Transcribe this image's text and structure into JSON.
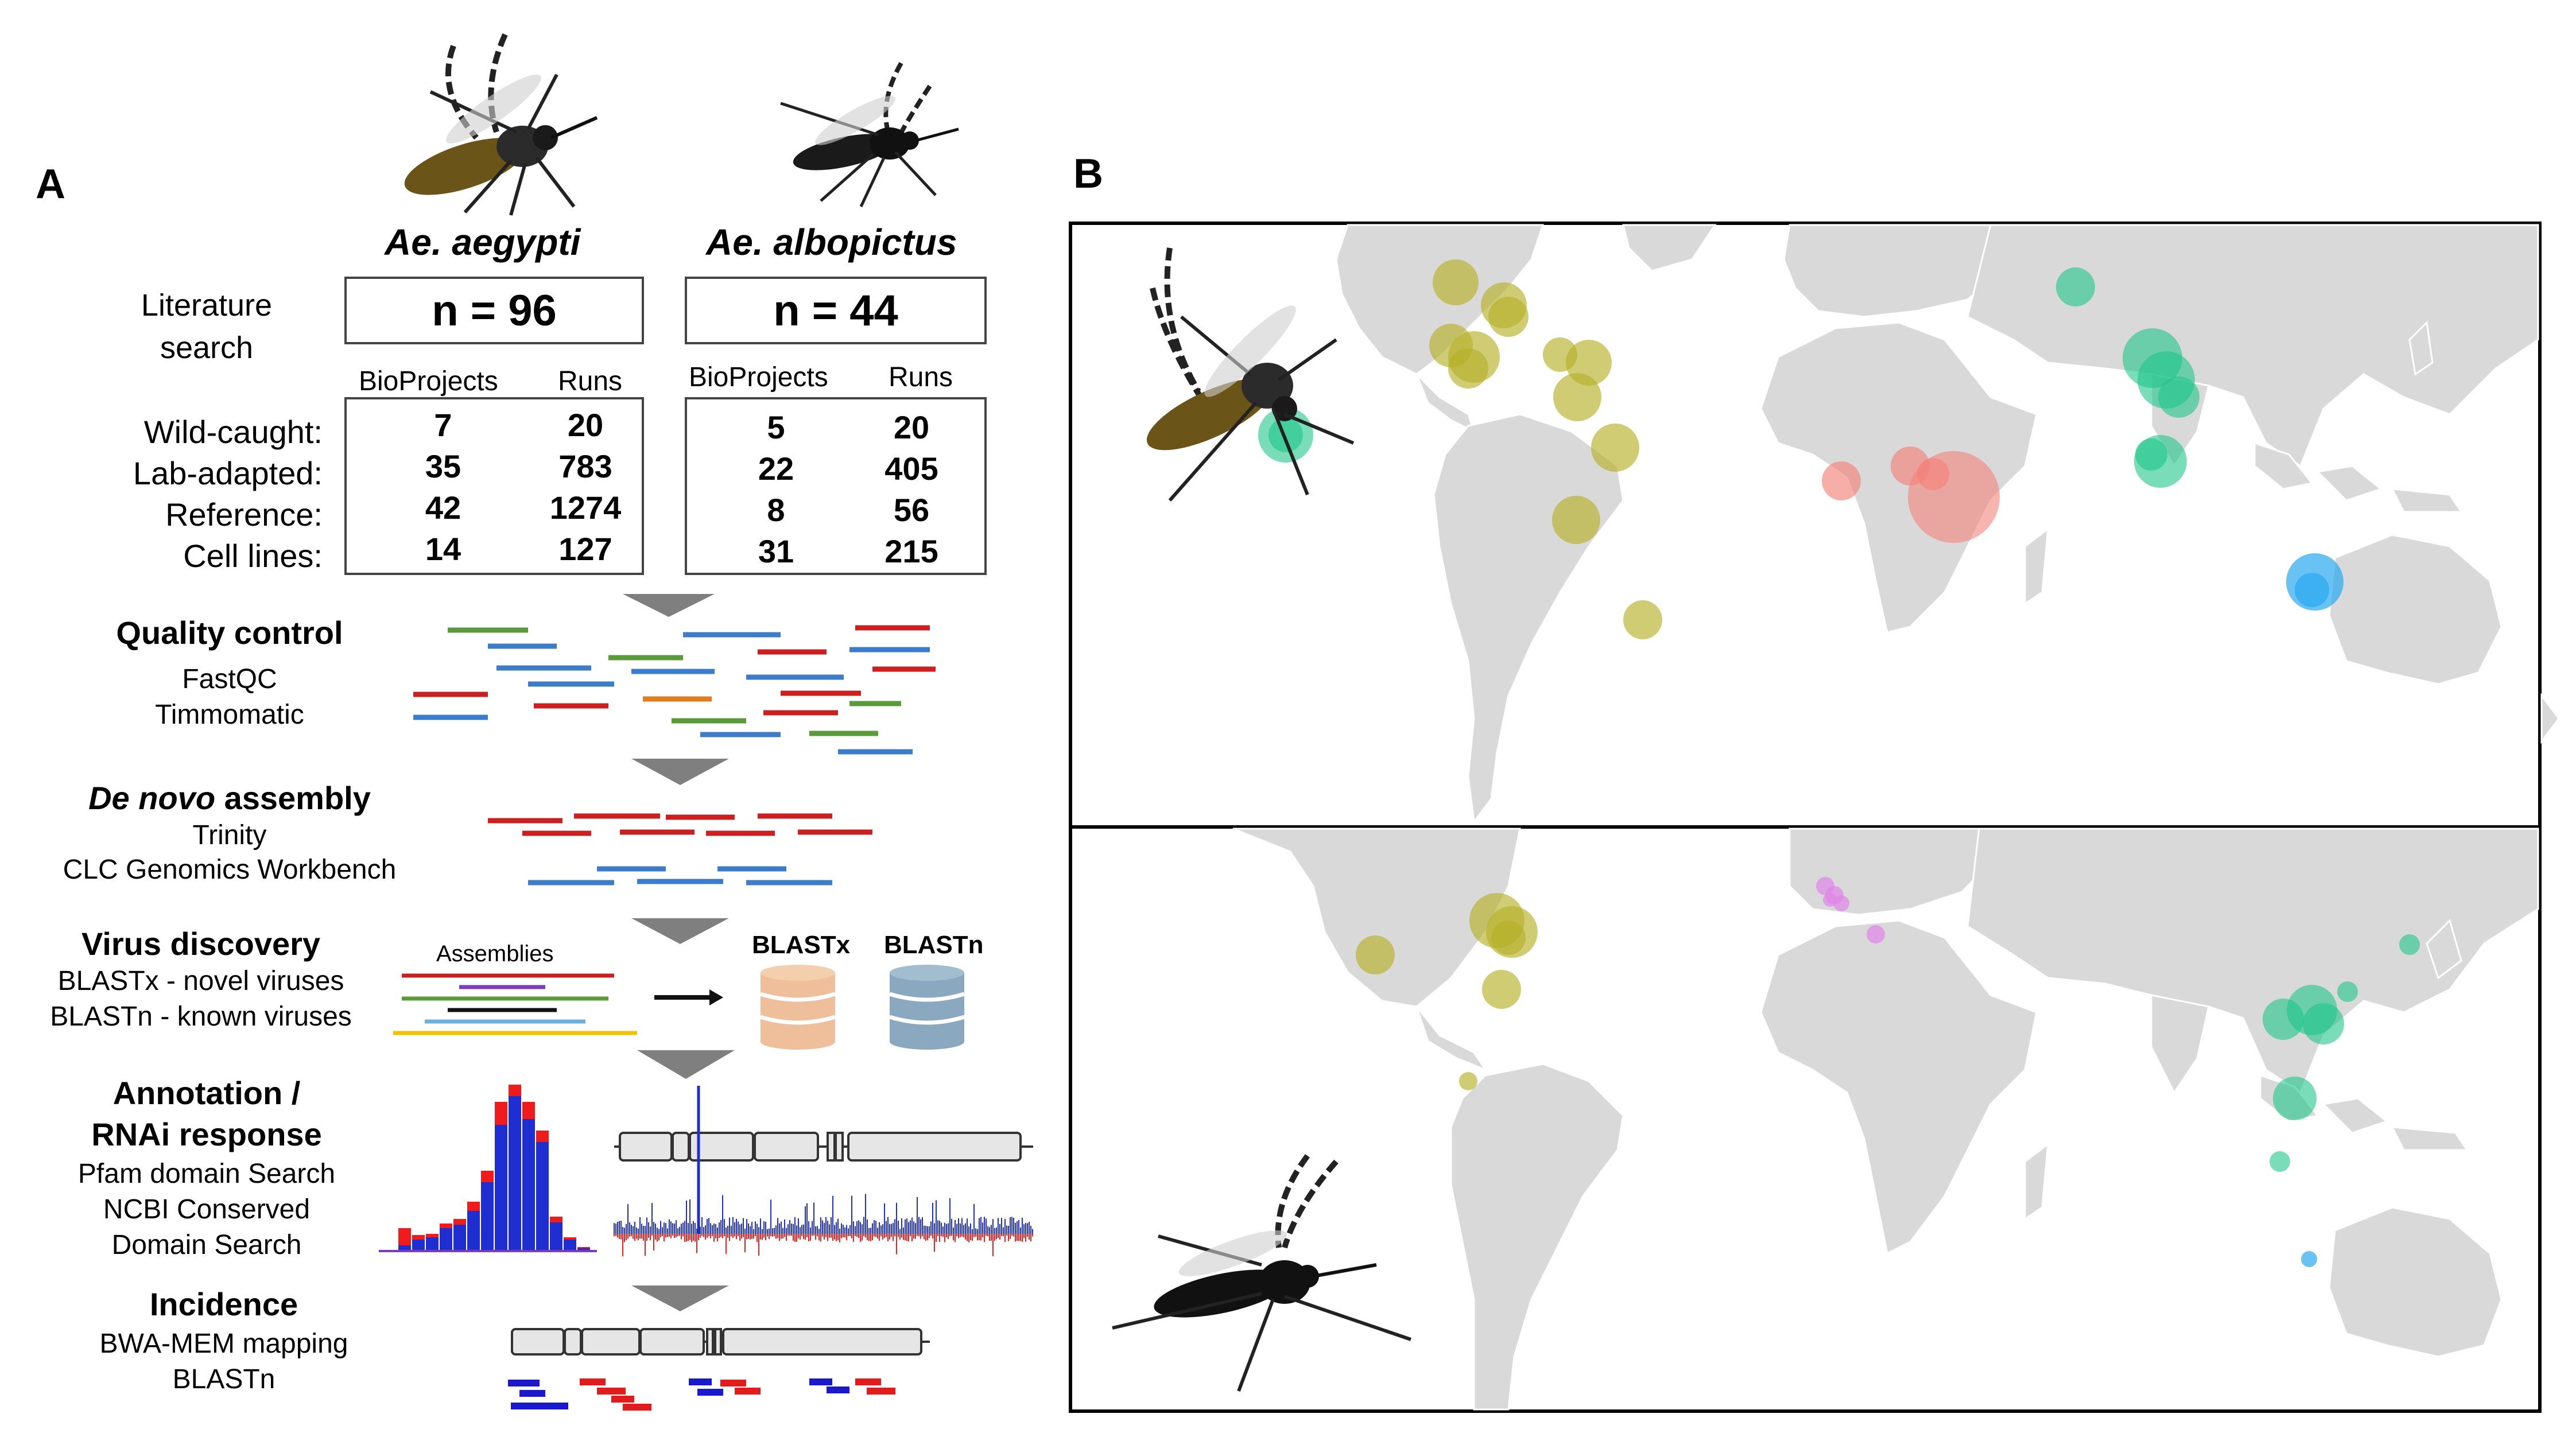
{
  "panelA": {
    "letter": "A",
    "species1": "Ae. aegypti",
    "species2": "Ae. albopictus",
    "literature_label_line1": "Literature",
    "literature_label_line2": "search",
    "n1": "n = 96",
    "n2": "n = 44",
    "col_bioprojects": "BioProjects",
    "col_runs": "Runs",
    "rows": [
      {
        "label": "Wild-caught:",
        "aeg_bio": "7",
        "aeg_runs": "20",
        "alb_bio": "5",
        "alb_runs": "20"
      },
      {
        "label": "Lab-adapted:",
        "aeg_bio": "35",
        "aeg_runs": "783",
        "alb_bio": "22",
        "alb_runs": "405"
      },
      {
        "label": "Reference:",
        "aeg_bio": "42",
        "aeg_runs": "1274",
        "alb_bio": "8",
        "alb_runs": "56"
      },
      {
        "label": "Cell lines:",
        "aeg_bio": "14",
        "aeg_runs": "127",
        "alb_bio": "31",
        "alb_runs": "215"
      }
    ],
    "steps": {
      "qc": {
        "title": "Quality control",
        "sub1": "FastQC",
        "sub2": "Timmomatic"
      },
      "assembly": {
        "title_italic": "De novo",
        "title_rest": " assembly",
        "sub1": "Trinity",
        "sub2": "CLC Genomics Workbench"
      },
      "discovery": {
        "title": "Virus discovery",
        "sub1": "BLASTx - novel viruses",
        "sub2": "BLASTn - known viruses",
        "assemblies": "Assemblies",
        "db1": "BLASTx",
        "db2": "BLASTn"
      },
      "annotation": {
        "title1": "Annotation /",
        "title2": "RNAi response",
        "sub1": "Pfam domain Search",
        "sub2": "NCBI Conserved",
        "sub3": "Domain Search"
      },
      "incidence": {
        "title": "Incidence",
        "sub1": "BWA-MEM mapping",
        "sub2": "BLASTn"
      }
    }
  },
  "panelB": {
    "letter": "B",
    "maps": [
      "Ae. aegypti sample locations",
      "Ae. albopictus sample locations"
    ]
  },
  "colors": {
    "americas": "#b5b12a",
    "africa": "#f4827a",
    "asia": "#1fc68a",
    "oceania": "#2aa8f0",
    "europe": "#e084e8",
    "land": "#d9d9d9",
    "arrow": "#7f7f7f",
    "read_red": "#cc1f1f",
    "read_blue": "#3d7cc9",
    "read_green": "#5a9a3a",
    "read_orange": "#e07b20",
    "db_peach": "#eebf9a",
    "db_slate": "#8aa9c0",
    "hist_red": "#ee1c1c",
    "hist_blue": "#1f2ed0"
  }
}
